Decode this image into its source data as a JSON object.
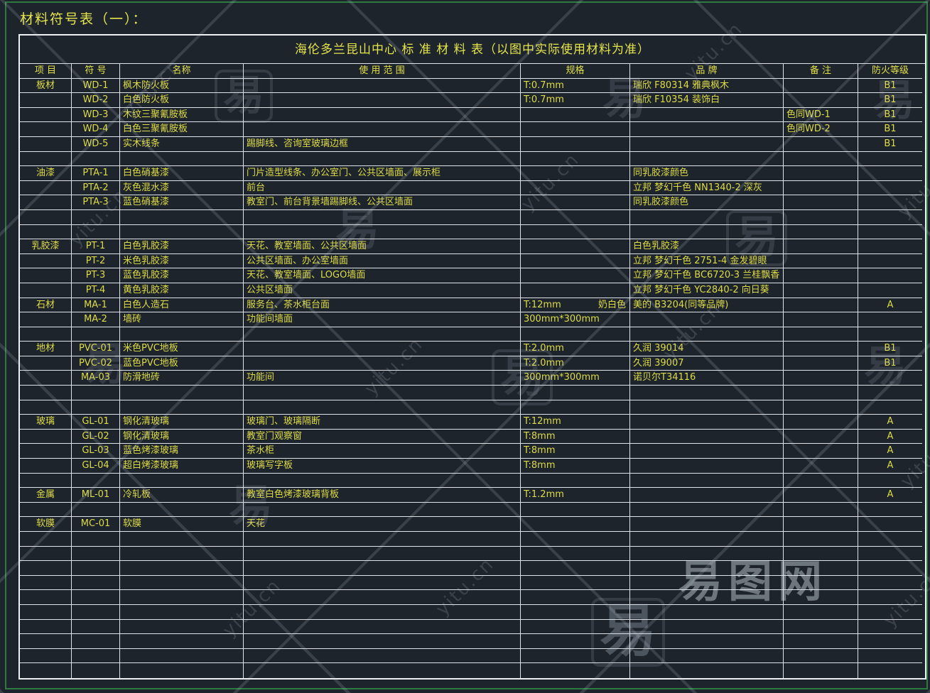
{
  "page": {
    "heading": "材料符号表（一）：",
    "watermark": {
      "glyph": "易",
      "domain": "yitu.cn",
      "logo": "易图网"
    }
  },
  "table": {
    "title": "海伦多兰昆山中心 标 准 材 料 表（以图中实际使用材料为准）",
    "columns": [
      "项  目",
      "符  号",
      "名称",
      "使 用 范 围",
      "规格",
      "品  牌",
      "备  注",
      "防火等级"
    ],
    "rows": [
      {
        "item": "板材",
        "code": "WD-1",
        "name": "枫木防火板",
        "usage": "",
        "spec": "T:0.7mm",
        "spec_right": "",
        "brand": "瑞欣 F80314 雅典枫木",
        "note": "",
        "fire": "B1"
      },
      {
        "item": "",
        "code": "WD-2",
        "name": "白色防火板",
        "usage": "",
        "spec": "T:0.7mm",
        "spec_right": "",
        "brand": "瑞欣 F10354 装饰白",
        "note": "",
        "fire": "B1"
      },
      {
        "item": "",
        "code": "WD-3",
        "name": "木纹三聚氰胺板",
        "usage": "",
        "spec": "",
        "spec_right": "",
        "brand": "",
        "note": "色同WD-1",
        "fire": "B1"
      },
      {
        "item": "",
        "code": "WD-4",
        "name": "白色三聚氰胺板",
        "usage": "",
        "spec": "",
        "spec_right": "",
        "brand": "",
        "note": "色同WD-2",
        "fire": "B1"
      },
      {
        "item": "",
        "code": "WD-5",
        "name": "实木线条",
        "usage": "踢脚线、咨询室玻璃边框",
        "spec": "",
        "spec_right": "",
        "brand": "",
        "note": "",
        "fire": "B1"
      },
      {},
      {
        "item": "油漆",
        "code": "PTA-1",
        "name": "白色硝基漆",
        "usage": "门片造型线条、办公室门、公共区墙面、展示柜",
        "spec": "",
        "spec_right": "",
        "brand": "同乳胶漆颜色",
        "note": "",
        "fire": ""
      },
      {
        "item": "",
        "code": "PTA-2",
        "name": "灰色混水漆",
        "usage": "前台",
        "spec": "",
        "spec_right": "",
        "brand": "立邦 梦幻千色 NN1340-2 深灰",
        "note": "",
        "fire": ""
      },
      {
        "item": "",
        "code": "PTA-3",
        "name": "蓝色硝基漆",
        "usage": "教室门、前台背景墙踢脚线、公共区墙面",
        "spec": "",
        "spec_right": "",
        "brand": "同乳胶漆颜色",
        "note": "",
        "fire": ""
      },
      {},
      {},
      {
        "item": "乳胶漆",
        "code": "PT-1",
        "name": "白色乳胶漆",
        "usage": "天花、教室墙面、公共区墙面",
        "spec": "",
        "spec_right": "",
        "brand": "白色乳胶漆",
        "note": "",
        "fire": ""
      },
      {
        "item": "",
        "code": "PT-2",
        "name": "米色乳胶漆",
        "usage": "公共区墙面、办公室墙面",
        "spec": "",
        "spec_right": "",
        "brand": "立邦 梦幻千色 2751-4 金发碧眼",
        "note": "",
        "fire": ""
      },
      {
        "item": "",
        "code": "PT-3",
        "name": "蓝色乳胶漆",
        "usage": "天花、教室墙面、LOGO墙面",
        "spec": "",
        "spec_right": "",
        "brand": "立邦 梦幻千色 BC6720-3 兰桂飘香",
        "note": "",
        "fire": ""
      },
      {
        "item": "",
        "code": "PT-4",
        "name": "黄色乳胶漆",
        "usage": "公共区墙面",
        "spec": "",
        "spec_right": "",
        "brand": "立邦 梦幻千色 YC2840-2 向日葵",
        "note": "",
        "fire": ""
      },
      {
        "item": "石材",
        "code": "MA-1",
        "name": "白色人造石",
        "usage": "服务台、茶水柜台面",
        "spec": "T:12mm",
        "spec_right": "奶白色",
        "brand": "美的 B3204(同等品牌)",
        "note": "",
        "fire": "A"
      },
      {
        "item": "",
        "code": "MA-2",
        "name": "墙砖",
        "usage": "功能间墙面",
        "spec": "300mm*300mm",
        "spec_right": "",
        "brand": "",
        "note": "",
        "fire": ""
      },
      {},
      {
        "item": "地材",
        "code": "PVC-01",
        "name": "米色PVC地板",
        "usage": "",
        "spec": "T:2.0mm",
        "spec_right": "",
        "brand": "久润 39014",
        "note": "",
        "fire": "B1"
      },
      {
        "item": "",
        "code": "PVC-02",
        "name": "蓝色PVC地板",
        "usage": "",
        "spec": "T:2.0mm",
        "spec_right": "",
        "brand": "久润 39007",
        "note": "",
        "fire": "B1"
      },
      {
        "item": "",
        "code": "MA-03",
        "name": "防滑地砖",
        "usage": "功能间",
        "spec": "300mm*300mm",
        "spec_right": "",
        "brand": "诺贝尔T34116",
        "note": "",
        "fire": ""
      },
      {},
      {},
      {
        "item": "玻璃",
        "code": "GL-01",
        "name": "钢化清玻璃",
        "usage": "玻璃门、玻璃隔断",
        "spec": "T:12mm",
        "spec_right": "",
        "brand": "",
        "note": "",
        "fire": "A"
      },
      {
        "item": "",
        "code": "GL-02",
        "name": "钢化清玻璃",
        "usage": "教室门观察窗",
        "spec": "T:8mm",
        "spec_right": "",
        "brand": "",
        "note": "",
        "fire": "A"
      },
      {
        "item": "",
        "code": "GL-03",
        "name": "蓝色烤漆玻璃",
        "usage": "茶水柜",
        "spec": "T:8mm",
        "spec_right": "",
        "brand": "",
        "note": "",
        "fire": "A"
      },
      {
        "item": "",
        "code": "GL-04",
        "name": "超白烤漆玻璃",
        "usage": "玻璃写字板",
        "spec": "T:8mm",
        "spec_right": "",
        "brand": "",
        "note": "",
        "fire": "A"
      },
      {},
      {
        "item": "金属",
        "code": "ML-01",
        "name": "冷轧板",
        "usage": "教室白色烤漆玻璃背板",
        "spec": "T:1.2mm",
        "spec_right": "",
        "brand": "",
        "note": "",
        "fire": "A"
      },
      {},
      {
        "item": "软膜",
        "code": "MC-01",
        "name": "软膜",
        "usage": "天花",
        "spec": "",
        "spec_right": "",
        "brand": "",
        "note": "",
        "fire": ""
      },
      {},
      {},
      {},
      {},
      {},
      {},
      {},
      {},
      {},
      {}
    ]
  }
}
